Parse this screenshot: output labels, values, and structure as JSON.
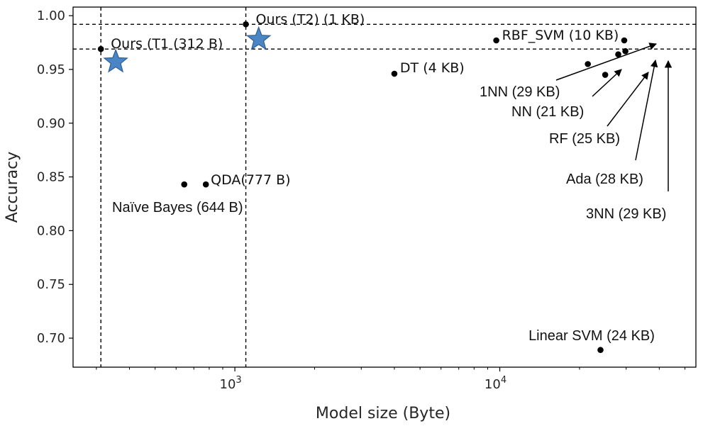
{
  "chart_data": {
    "type": "scatter",
    "xlabel": "Model size (Byte)",
    "ylabel": "Accuracy",
    "x_scale": "log",
    "xlim": [
      245,
      55000
    ],
    "ylim": [
      0.673,
      1.008
    ],
    "grid": false,
    "x_ticks": [
      {
        "value": 1000,
        "base": "10",
        "exp": "3"
      },
      {
        "value": 10000,
        "base": "10",
        "exp": "4"
      }
    ],
    "y_ticks": [
      {
        "value": 0.7,
        "label": "0.70"
      },
      {
        "value": 0.75,
        "label": "0.75"
      },
      {
        "value": 0.8,
        "label": "0.80"
      },
      {
        "value": 0.85,
        "label": "0.85"
      },
      {
        "value": 0.9,
        "label": "0.90"
      },
      {
        "value": 0.95,
        "label": "0.95"
      },
      {
        "value": 1.0,
        "label": "1.00"
      }
    ],
    "reference_lines": {
      "vertical": [
        312,
        1100
      ],
      "horizontal": [
        0.969,
        0.992
      ]
    },
    "points": [
      {
        "label": "Ours (T1 (312 B)",
        "x": 312,
        "y": 0.969,
        "marker": "dot",
        "label_placement": "right"
      },
      {
        "label": "Ours (T2) (1 KB)",
        "x": 1100,
        "y": 0.992,
        "marker": "dot",
        "label_placement": "right"
      },
      {
        "label": "QDA(777 B)",
        "x": 777,
        "y": 0.843,
        "marker": "dot",
        "label_placement": "right"
      },
      {
        "label": "Naïve Bayes (644 B)",
        "x": 644,
        "y": 0.843,
        "marker": "dot",
        "label_placement": "below"
      },
      {
        "label": "DT (4 KB)",
        "x": 4000,
        "y": 0.946,
        "marker": "dot",
        "label_placement": "right"
      },
      {
        "label": "RBF_SVM (10 KB)",
        "x": 9700,
        "y": 0.977,
        "marker": "dot",
        "label_placement": "right"
      },
      {
        "label": "Linear SVM (24 KB)",
        "x": 24000,
        "y": 0.689,
        "marker": "dot",
        "label_placement": "above"
      },
      {
        "label": "1NN (29 KB)",
        "x": 29500,
        "y": 0.977,
        "marker": "dot",
        "label_placement": "arrow"
      },
      {
        "label": "NN (21 KB)",
        "x": 21500,
        "y": 0.955,
        "marker": "dot",
        "label_placement": "arrow"
      },
      {
        "label": "RF (25 KB)",
        "x": 25000,
        "y": 0.945,
        "marker": "dot",
        "label_placement": "arrow"
      },
      {
        "label": "Ada (28 KB)",
        "x": 28000,
        "y": 0.964,
        "marker": "dot",
        "label_placement": "arrow"
      },
      {
        "label": "3NN (29 KB)",
        "x": 29800,
        "y": 0.967,
        "marker": "dot",
        "label_placement": "arrow"
      },
      {
        "label": "",
        "x": 355,
        "y": 0.957,
        "marker": "star"
      },
      {
        "label": "",
        "x": 1230,
        "y": 0.978,
        "marker": "star"
      }
    ]
  },
  "colors": {
    "dot": "#000000",
    "star_fill": "#4a86c5",
    "star_stroke": "#2d5f93",
    "axis": "#000000"
  }
}
